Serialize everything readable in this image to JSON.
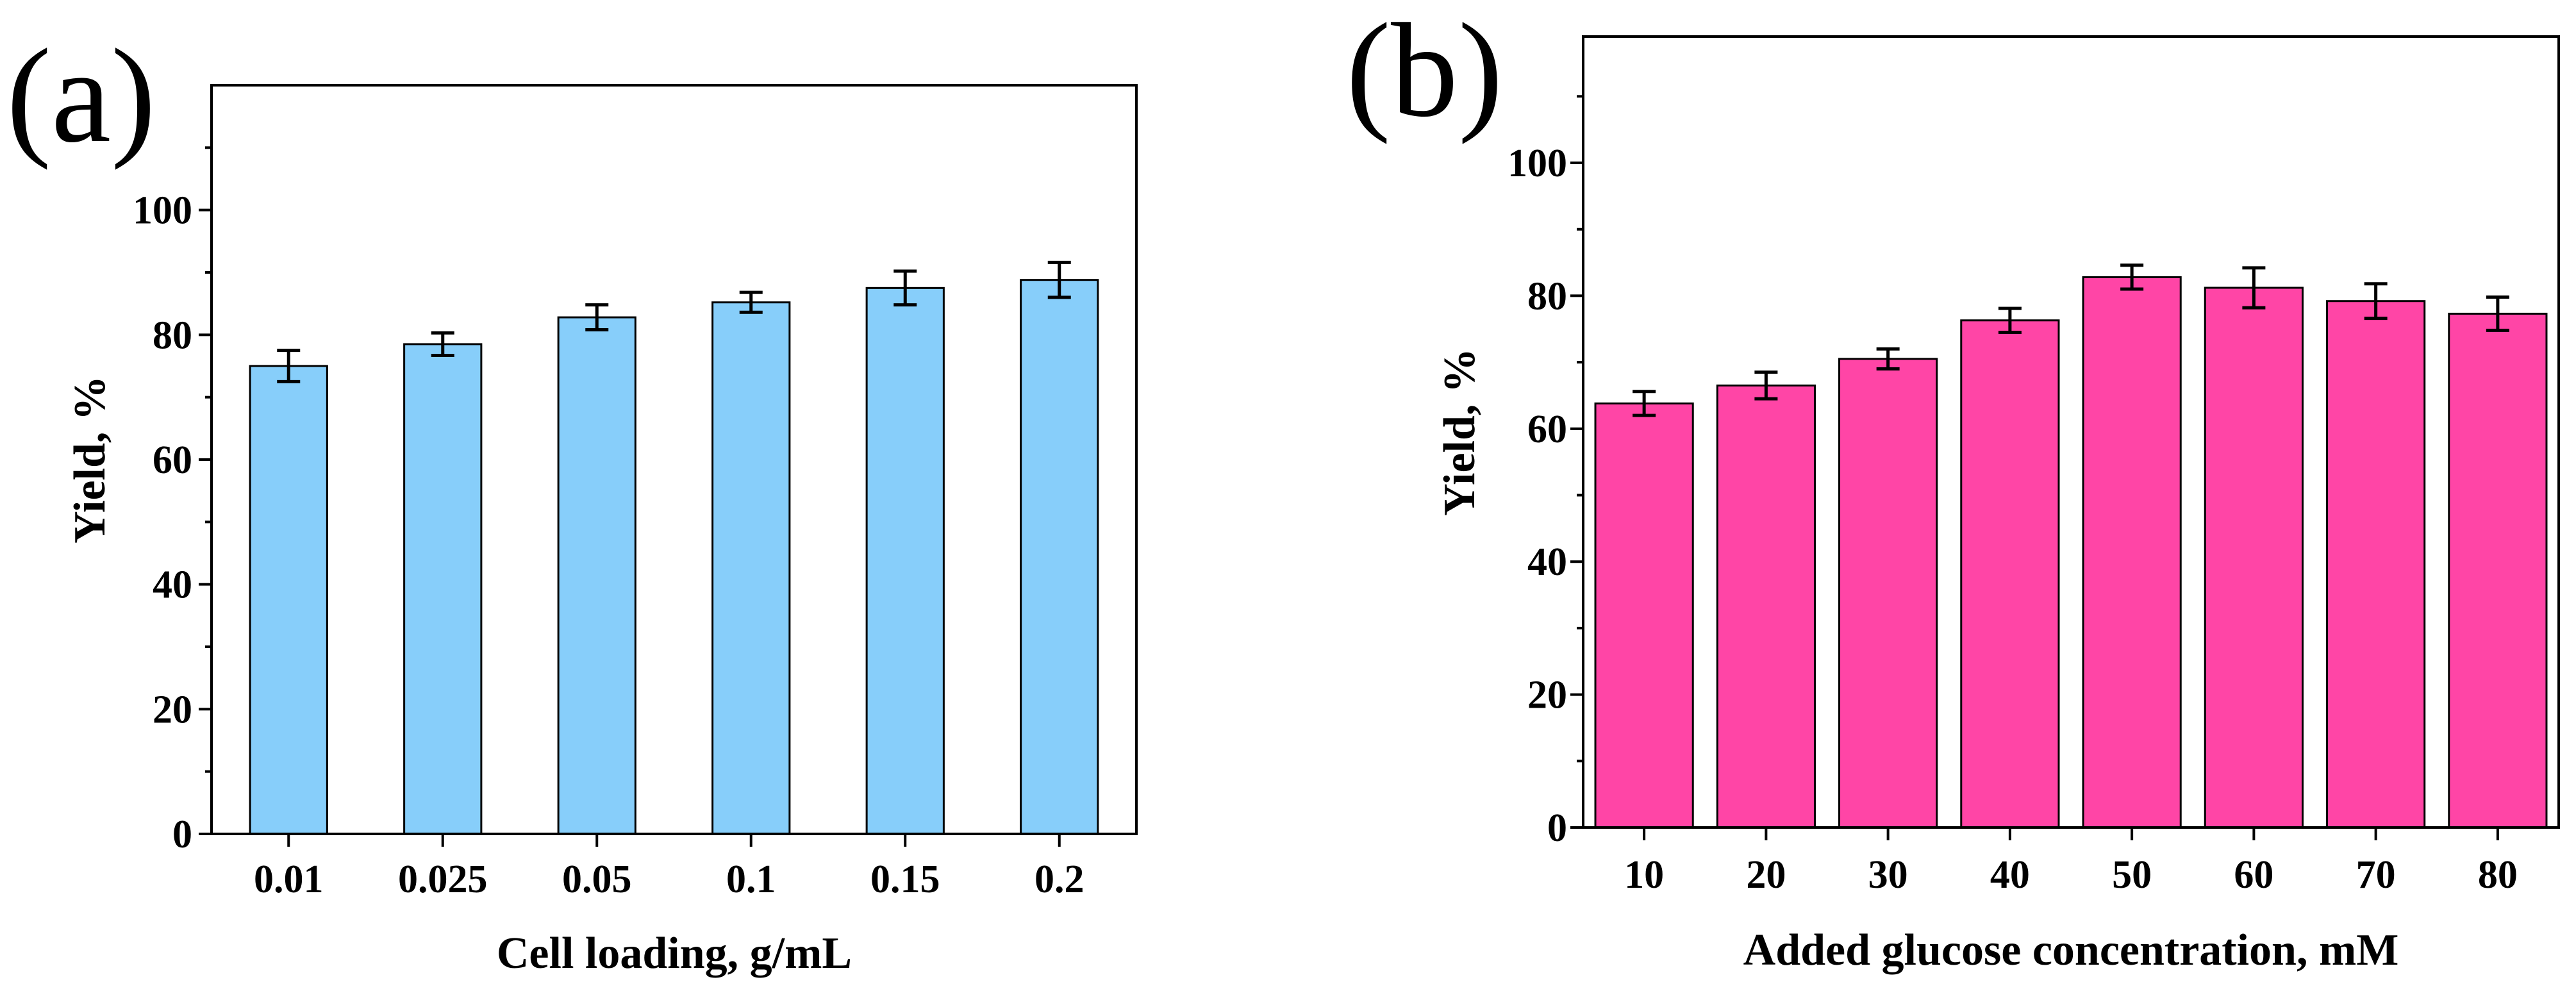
{
  "chart_data": [
    {
      "panel": "(a)",
      "type": "bar",
      "categories": [
        "0.01",
        "0.025",
        "0.05",
        "0.1",
        "0.15",
        "0.2"
      ],
      "values": [
        75,
        78.5,
        82.8,
        85.2,
        87.5,
        88.8
      ],
      "errors": [
        2.5,
        1.8,
        2.0,
        1.6,
        2.7,
        2.8
      ],
      "xlabel": "Cell loading, g/mL",
      "ylabel": "Yield, %",
      "ylim": [
        0,
        120
      ],
      "yticks": [
        0,
        20,
        40,
        60,
        80,
        100
      ],
      "yticks_labels": [
        "0",
        "20",
        "40",
        "60",
        "80",
        "100"
      ],
      "bar_color": "#87CEFA"
    },
    {
      "panel": "(b)",
      "type": "bar",
      "categories": [
        "10",
        "20",
        "30",
        "40",
        "50",
        "60",
        "70",
        "80"
      ],
      "values": [
        63.8,
        66.5,
        70.5,
        76.3,
        82.8,
        81.2,
        79.2,
        77.3
      ],
      "errors": [
        1.8,
        2.0,
        1.5,
        1.8,
        1.8,
        3.0,
        2.6,
        2.5
      ],
      "xlabel": "Added glucose concentration, mM",
      "ylabel": "Yield, %",
      "ylim": [
        0,
        119
      ],
      "yticks": [
        0,
        20,
        40,
        60,
        80,
        100
      ],
      "yticks_labels": [
        "0",
        "20",
        "40",
        "60",
        "80",
        "100"
      ],
      "bar_color": "#FF45A6"
    }
  ]
}
